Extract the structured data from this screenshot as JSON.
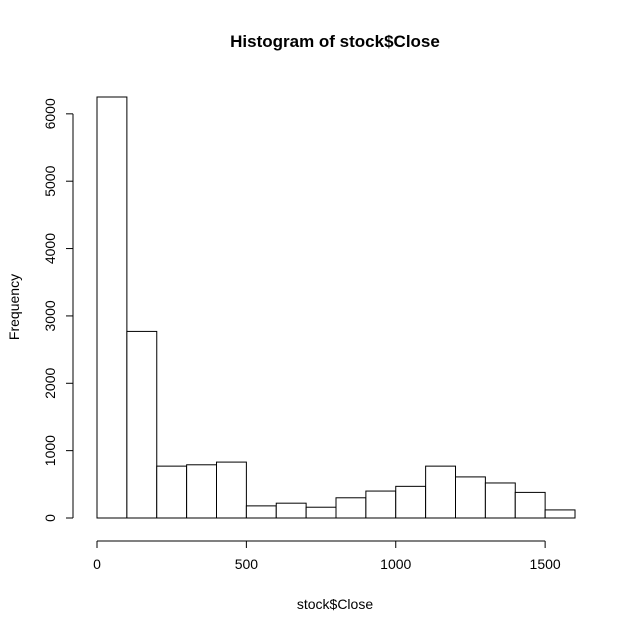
{
  "chart_data": {
    "type": "bar",
    "histogram": true,
    "title": "Histogram of stock$Close",
    "xlabel": "stock$Close",
    "ylabel": "Frequency",
    "bin_width": 100,
    "bins": [
      {
        "start": 0,
        "end": 100,
        "count": 6250
      },
      {
        "start": 100,
        "end": 200,
        "count": 2770
      },
      {
        "start": 200,
        "end": 300,
        "count": 770
      },
      {
        "start": 300,
        "end": 400,
        "count": 790
      },
      {
        "start": 400,
        "end": 500,
        "count": 830
      },
      {
        "start": 500,
        "end": 600,
        "count": 180
      },
      {
        "start": 600,
        "end": 700,
        "count": 220
      },
      {
        "start": 700,
        "end": 800,
        "count": 160
      },
      {
        "start": 800,
        "end": 900,
        "count": 300
      },
      {
        "start": 900,
        "end": 1000,
        "count": 400
      },
      {
        "start": 1000,
        "end": 1100,
        "count": 470
      },
      {
        "start": 1100,
        "end": 1200,
        "count": 770
      },
      {
        "start": 1200,
        "end": 1300,
        "count": 610
      },
      {
        "start": 1300,
        "end": 1400,
        "count": 520
      },
      {
        "start": 1400,
        "end": 1500,
        "count": 380
      },
      {
        "start": 1500,
        "end": 1600,
        "count": 120
      }
    ],
    "xlim": [
      0,
      1600
    ],
    "ylim": [
      0,
      6250
    ],
    "xticks": [
      0,
      500,
      1000,
      1500
    ],
    "yticks": [
      0,
      1000,
      2000,
      3000,
      4000,
      5000,
      6000
    ],
    "grid": false,
    "colors": {
      "bar_fill": "#ffffff",
      "bar_stroke": "#000000"
    }
  }
}
